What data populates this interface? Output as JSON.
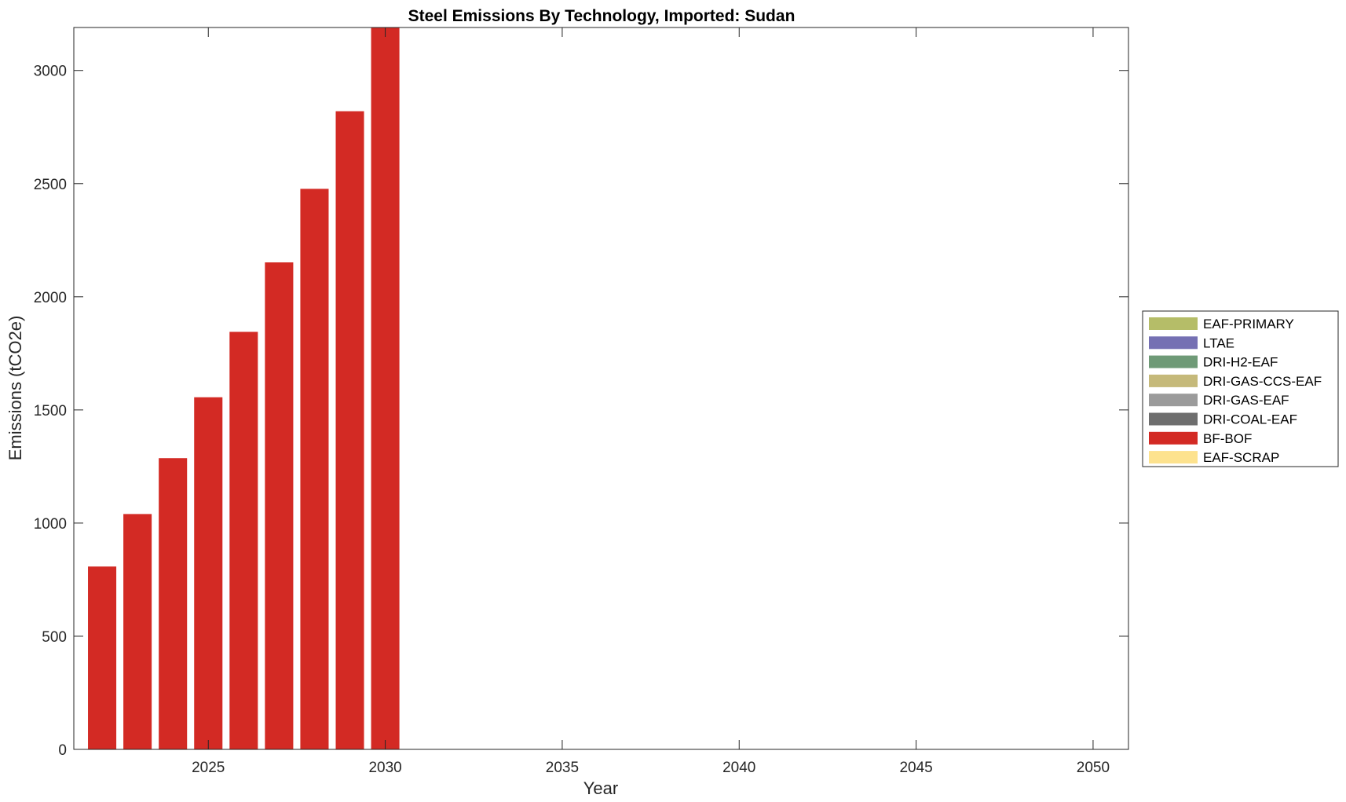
{
  "chart_data": {
    "type": "bar",
    "stacked": true,
    "title": "Steel Emissions By Technology, Imported: Sudan",
    "xlabel": "Year",
    "ylabel": "Emissions (tCO2e)",
    "x": [
      2022,
      2023,
      2024,
      2025,
      2026,
      2027,
      2028,
      2029,
      2030,
      2031,
      2032,
      2033,
      2034,
      2035,
      2036,
      2037,
      2038,
      2039,
      2040,
      2041,
      2042,
      2043,
      2044,
      2045,
      2046,
      2047,
      2048,
      2049,
      2050
    ],
    "xlim": [
      2021.2,
      2051.0
    ],
    "ylim": [
      0,
      3190
    ],
    "xticks": [
      2025,
      2030,
      2035,
      2040,
      2045,
      2050
    ],
    "yticks": [
      0,
      500,
      1000,
      1500,
      2000,
      2500,
      3000
    ],
    "grid": false,
    "legend_position": "outside-right",
    "series": [
      {
        "name": "EAF-PRIMARY",
        "color": "#b5bd68",
        "values": [
          0,
          0,
          0,
          0,
          0,
          0,
          0,
          0,
          0,
          0,
          0,
          0,
          0,
          0,
          0,
          0,
          0,
          0,
          0,
          0,
          0,
          0,
          0,
          0,
          0,
          0,
          0,
          0,
          0
        ]
      },
      {
        "name": "LTAE",
        "color": "#7570b3",
        "values": [
          0,
          0,
          0,
          0,
          0,
          0,
          0,
          0,
          0,
          0,
          0,
          0,
          0,
          0,
          0,
          0,
          0,
          0,
          0,
          0,
          0,
          0,
          0,
          0,
          0,
          0,
          0,
          0,
          0
        ]
      },
      {
        "name": "DRI-H2-EAF",
        "color": "#6f9a77",
        "values": [
          0,
          0,
          0,
          0,
          0,
          0,
          0,
          0,
          0,
          0,
          0,
          0,
          0,
          0,
          0,
          0,
          0,
          0,
          0,
          0,
          0,
          0,
          0,
          0,
          0,
          0,
          0,
          0,
          0
        ]
      },
      {
        "name": "DRI-GAS-CCS-EAF",
        "color": "#c5b97a",
        "values": [
          0,
          0,
          0,
          0,
          0,
          0,
          0,
          0,
          0,
          0,
          0,
          0,
          0,
          0,
          0,
          0,
          0,
          0,
          0,
          0,
          0,
          0,
          0,
          0,
          0,
          0,
          0,
          0,
          0
        ]
      },
      {
        "name": "DRI-GAS-EAF",
        "color": "#9b9b9b",
        "values": [
          0,
          0,
          0,
          0,
          0,
          0,
          0,
          0,
          0,
          0,
          0,
          0,
          0,
          0,
          0,
          0,
          0,
          0,
          0,
          0,
          0,
          0,
          0,
          0,
          0,
          0,
          0,
          0,
          0
        ]
      },
      {
        "name": "DRI-COAL-EAF",
        "color": "#6e6e6e",
        "values": [
          0,
          0,
          0,
          0,
          0,
          0,
          0,
          0,
          0,
          0,
          0,
          0,
          0,
          0,
          0,
          0,
          0,
          0,
          0,
          0,
          0,
          0,
          0,
          0,
          0,
          0,
          0,
          0,
          0
        ]
      },
      {
        "name": "BF-BOF",
        "color": "#d32a24",
        "values": [
          808,
          1040,
          1287,
          1556,
          1845,
          2152,
          2477,
          2820,
          3190,
          0,
          0,
          0,
          0,
          0,
          0,
          0,
          0,
          0,
          0,
          0,
          0,
          0,
          0,
          0,
          0,
          0,
          0,
          0,
          0
        ]
      },
      {
        "name": "EAF-SCRAP",
        "color": "#fde28e",
        "values": [
          0,
          0,
          0,
          0,
          0,
          0,
          0,
          0,
          0,
          0,
          0,
          0,
          0,
          0,
          0,
          0,
          0,
          0,
          0,
          0,
          0,
          0,
          0,
          0,
          0,
          0,
          0,
          0,
          0
        ]
      }
    ]
  }
}
